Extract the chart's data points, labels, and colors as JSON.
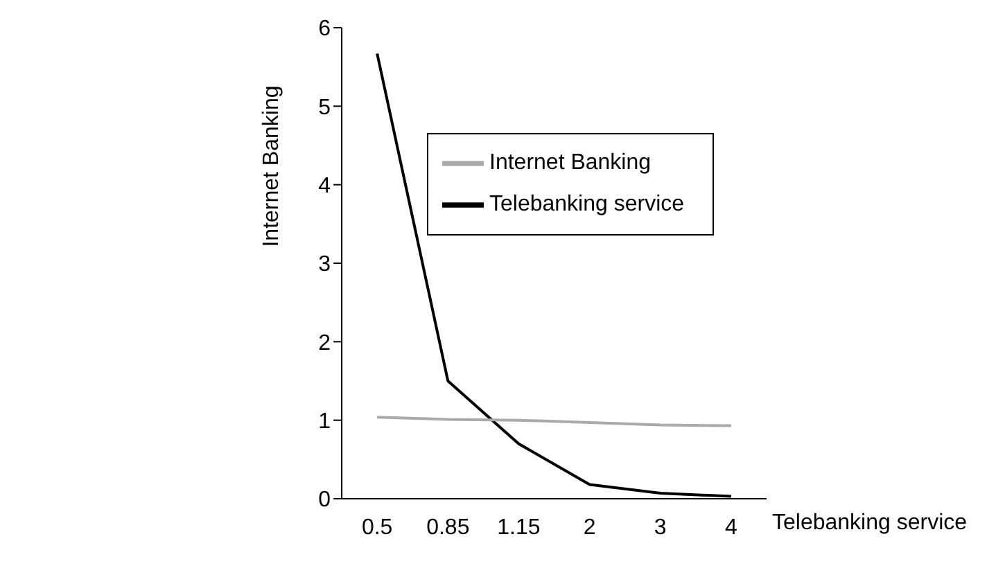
{
  "chart_data": {
    "type": "line",
    "xlabel": "Telebanking service",
    "ylabel": "Internet Banking",
    "categories": [
      "0.5",
      "0.85",
      "1.15",
      "2",
      "3",
      "4"
    ],
    "series": [
      {
        "name": "Telebanking service",
        "color": "#000000",
        "values": [
          5.67,
          1.5,
          0.7,
          0.18,
          0.07,
          0.03
        ]
      },
      {
        "name": "Internet Banking",
        "color": "#aaaaaa",
        "values": [
          1.04,
          1.01,
          1.0,
          0.97,
          0.94,
          0.93
        ]
      }
    ],
    "ylim": [
      0,
      6
    ],
    "yticks": [
      0,
      1,
      2,
      3,
      4,
      5,
      6
    ],
    "grid": false,
    "legend": "top right",
    "marker": "none",
    "line_style": "solid"
  }
}
